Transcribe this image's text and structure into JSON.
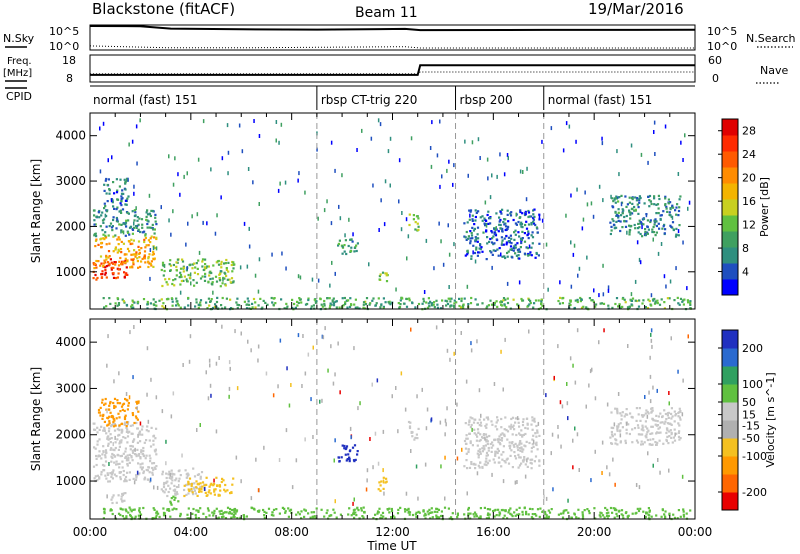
{
  "header": {
    "station": "Blackstone (fitACF)",
    "beam": "Beam 11",
    "date": "19/Mar/2016"
  },
  "left_labels": {
    "nsky": "N.Sky",
    "freq": "Freq.",
    "mhz": "[MHz]",
    "cpid": "CPID"
  },
  "right_labels": {
    "nsearch": "N.Search",
    "nave": "Nave"
  },
  "noise_axis_ticks": [
    "10^5",
    "10^0"
  ],
  "freq_axis_ticks": [
    18,
    8
  ],
  "nave_axis_ticks": [
    60,
    0
  ],
  "cpid_segments": [
    {
      "label": "normal (fast) 151",
      "start": 0.0
    },
    {
      "label": "rbsp CT-trig 220",
      "start": 9.0
    },
    {
      "label": "rbsp 200",
      "start": 14.5
    },
    {
      "label": "normal (fast) 151",
      "start": 18.0
    }
  ],
  "colors": {
    "power_scale": [
      "#0000ff",
      "#1f4fbf",
      "#2f8f7f",
      "#3fa060",
      "#60c040",
      "#c8d020",
      "#f4b400",
      "#ff8c00",
      "#ff5a00",
      "#ff2a00",
      "#e00000"
    ],
    "velocity_scale": [
      "#2030c0",
      "#2a6ad0",
      "#30a060",
      "#60c040",
      "#c8c8c8",
      "#b0b0b0",
      "#f4c020",
      "#ff9900",
      "#ff6600",
      "#e80000"
    ]
  },
  "chart_data": [
    {
      "type": "line",
      "name": "noise-panel",
      "series": [
        {
          "name": "N.Sky",
          "x": [
            0,
            2,
            3.2,
            6,
            9,
            12.5,
            13.1,
            18,
            24
          ],
          "y": [
            100000,
            90000,
            25000,
            18000,
            15000,
            22000,
            12000,
            13000,
            14000
          ]
        },
        {
          "name": "N.Search",
          "x": [
            0,
            3,
            6,
            12.5,
            13.1,
            24
          ],
          "y": [
            3,
            1.2,
            1.1,
            2,
            1,
            1
          ]
        }
      ]
    },
    {
      "type": "line",
      "name": "freq-panel",
      "series": [
        {
          "name": "Freq.",
          "x": [
            0,
            13,
            13.1,
            24
          ],
          "y": [
            10.2,
            10.2,
            14.4,
            14.4
          ]
        },
        {
          "name": "Nave",
          "x": [
            0,
            13,
            13.1,
            24
          ],
          "y": [
            16,
            16,
            21,
            21
          ]
        }
      ]
    },
    {
      "type": "heatmap",
      "name": "power-panel",
      "xlabel": "",
      "ylabel": "Slant Range [km]",
      "ylim": [
        180,
        4500
      ],
      "xlim": [
        0,
        24
      ],
      "yticks": [
        1000,
        2000,
        3000,
        4000
      ],
      "colorbar": {
        "label": "Power [dB]",
        "ticks": [
          4,
          8,
          12,
          16,
          20,
          24,
          28
        ],
        "range": [
          0,
          30
        ]
      },
      "patches": [
        {
          "x": [
            0.1,
            1.5
          ],
          "y": [
            850,
            1300
          ],
          "v": 26
        },
        {
          "x": [
            0.1,
            2.6
          ],
          "y": [
            1100,
            1800
          ],
          "v": 19
        },
        {
          "x": [
            0.1,
            2.6
          ],
          "y": [
            1800,
            2400
          ],
          "v": 8
        },
        {
          "x": [
            0.5,
            1.5
          ],
          "y": [
            2400,
            3100
          ],
          "v": 6
        },
        {
          "x": [
            2.8,
            5.7
          ],
          "y": [
            700,
            1300
          ],
          "v": 12
        },
        {
          "x": [
            9.8,
            10.6
          ],
          "y": [
            1400,
            1800
          ],
          "v": 9
        },
        {
          "x": [
            11.4,
            11.8
          ],
          "y": [
            800,
            1100
          ],
          "v": 12
        },
        {
          "x": [
            12.6,
            13.0
          ],
          "y": [
            1900,
            2300
          ],
          "v": 12
        },
        {
          "x": [
            14.8,
            17.8
          ],
          "y": [
            1300,
            2400
          ],
          "v": 5
        },
        {
          "x": [
            20.6,
            23.4
          ],
          "y": [
            1800,
            2700
          ],
          "v": 7
        },
        {
          "x": [
            0.5,
            23.8
          ],
          "y": [
            200,
            450
          ],
          "v": 10
        }
      ]
    },
    {
      "type": "heatmap",
      "name": "velocity-panel",
      "xlabel": "Time UT",
      "ylabel": "Slant Range [km]",
      "ylim": [
        180,
        4500
      ],
      "xlim": [
        0,
        24
      ],
      "xticks": [
        "00:00",
        "04:00",
        "08:00",
        "12:00",
        "16:00",
        "20:00",
        "00:00"
      ],
      "yticks": [
        1000,
        2000,
        3000,
        4000
      ],
      "colorbar": {
        "label": "Velocity [m s^-1]",
        "ticks": [
          200,
          100,
          50,
          15,
          -15,
          -50,
          -100,
          -200
        ],
        "range": [
          -250,
          250
        ]
      },
      "patches": [
        {
          "x": [
            0.1,
            2.6
          ],
          "y": [
            1000,
            2300
          ],
          "v": 0
        },
        {
          "x": [
            0.3,
            1.9
          ],
          "y": [
            2200,
            2800
          ],
          "v": -110
        },
        {
          "x": [
            0.8,
            1.4
          ],
          "y": [
            500,
            800
          ],
          "v": 0
        },
        {
          "x": [
            2.8,
            4.5
          ],
          "y": [
            700,
            1300
          ],
          "v": 0
        },
        {
          "x": [
            3.7,
            5.7
          ],
          "y": [
            700,
            1100
          ],
          "v": -80
        },
        {
          "x": [
            3.0,
            3.5
          ],
          "y": [
            500,
            700
          ],
          "v": 35
        },
        {
          "x": [
            9.8,
            10.6
          ],
          "y": [
            1400,
            1800
          ],
          "v": 230
        },
        {
          "x": [
            11.4,
            11.8
          ],
          "y": [
            800,
            1100
          ],
          "v": -70
        },
        {
          "x": [
            12.6,
            13.0
          ],
          "y": [
            1900,
            2300
          ],
          "v": 0
        },
        {
          "x": [
            14.8,
            17.8
          ],
          "y": [
            1300,
            2400
          ],
          "v": 0
        },
        {
          "x": [
            20.6,
            23.4
          ],
          "y": [
            1800,
            2600
          ],
          "v": 0
        },
        {
          "x": [
            0.5,
            23.8
          ],
          "y": [
            200,
            450
          ],
          "v": 30
        }
      ]
    }
  ]
}
